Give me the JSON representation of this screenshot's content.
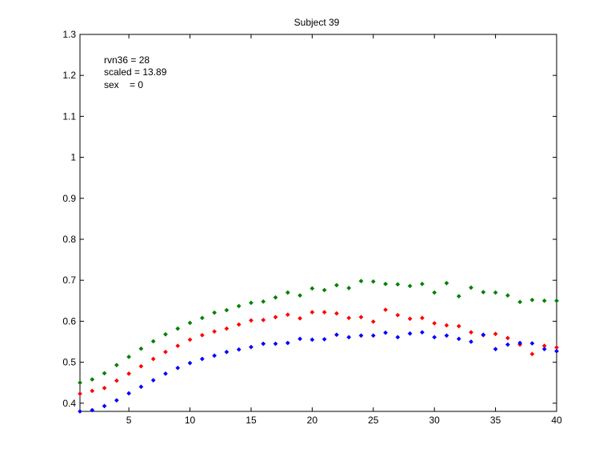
{
  "chart_data": {
    "type": "scatter",
    "title": "Subject 39",
    "xlabel": "",
    "ylabel": "",
    "xlim": [
      1,
      40
    ],
    "ylim": [
      0.38,
      1.3
    ],
    "x_ticks": [
      5,
      10,
      15,
      20,
      25,
      30,
      35,
      40
    ],
    "y_ticks": [
      0.4,
      0.5,
      0.6,
      0.7,
      0.8,
      0.9,
      1,
      1.1,
      1.2,
      1.3
    ],
    "x_tick_labels": [
      "5",
      "10",
      "15",
      "20",
      "25",
      "30",
      "35",
      "40"
    ],
    "y_tick_labels": [
      "0.4",
      "0.5",
      "0.6",
      "0.7",
      "0.8",
      "0.9",
      "1",
      "1.1",
      "1.2",
      "1.3"
    ],
    "grid": false,
    "annotations": [
      "rvn36 = 28",
      "scaled = 13.89",
      "sex    = 0"
    ],
    "x": [
      1,
      2,
      3,
      4,
      5,
      6,
      7,
      8,
      9,
      10,
      11,
      12,
      13,
      14,
      15,
      16,
      17,
      18,
      19,
      20,
      21,
      22,
      23,
      24,
      25,
      26,
      27,
      28,
      29,
      30,
      31,
      32,
      33,
      34,
      35,
      36,
      37,
      38,
      39,
      40
    ],
    "series": [
      {
        "color": "#008000",
        "values": [
          0.45,
          0.458,
          0.473,
          0.493,
          0.513,
          0.533,
          0.551,
          0.568,
          0.582,
          0.596,
          0.608,
          0.621,
          0.627,
          0.637,
          0.645,
          0.648,
          0.658,
          0.67,
          0.663,
          0.68,
          0.676,
          0.688,
          0.681,
          0.698,
          0.697,
          0.691,
          0.69,
          0.686,
          0.691,
          0.67,
          0.693,
          0.661,
          0.682,
          0.671,
          0.67,
          0.663,
          0.647,
          0.652,
          0.65,
          0.65
        ]
      },
      {
        "color": "#ff0000",
        "values": [
          0.423,
          0.43,
          0.437,
          0.455,
          0.472,
          0.49,
          0.508,
          0.525,
          0.54,
          0.555,
          0.566,
          0.575,
          0.582,
          0.592,
          0.602,
          0.603,
          0.61,
          0.616,
          0.607,
          0.622,
          0.622,
          0.619,
          0.608,
          0.61,
          0.599,
          0.628,
          0.615,
          0.606,
          0.608,
          0.595,
          0.59,
          0.588,
          0.573,
          0.566,
          0.569,
          0.559,
          0.543,
          0.52,
          0.54,
          0.536
        ]
      },
      {
        "color": "#0000ff",
        "values": [
          0.38,
          0.383,
          0.393,
          0.407,
          0.424,
          0.44,
          0.456,
          0.472,
          0.486,
          0.498,
          0.508,
          0.516,
          0.525,
          0.531,
          0.537,
          0.545,
          0.545,
          0.547,
          0.557,
          0.555,
          0.556,
          0.567,
          0.561,
          0.565,
          0.565,
          0.572,
          0.561,
          0.57,
          0.573,
          0.561,
          0.565,
          0.557,
          0.55,
          0.567,
          0.532,
          0.543,
          0.547,
          0.546,
          0.532,
          0.527
        ]
      }
    ]
  }
}
